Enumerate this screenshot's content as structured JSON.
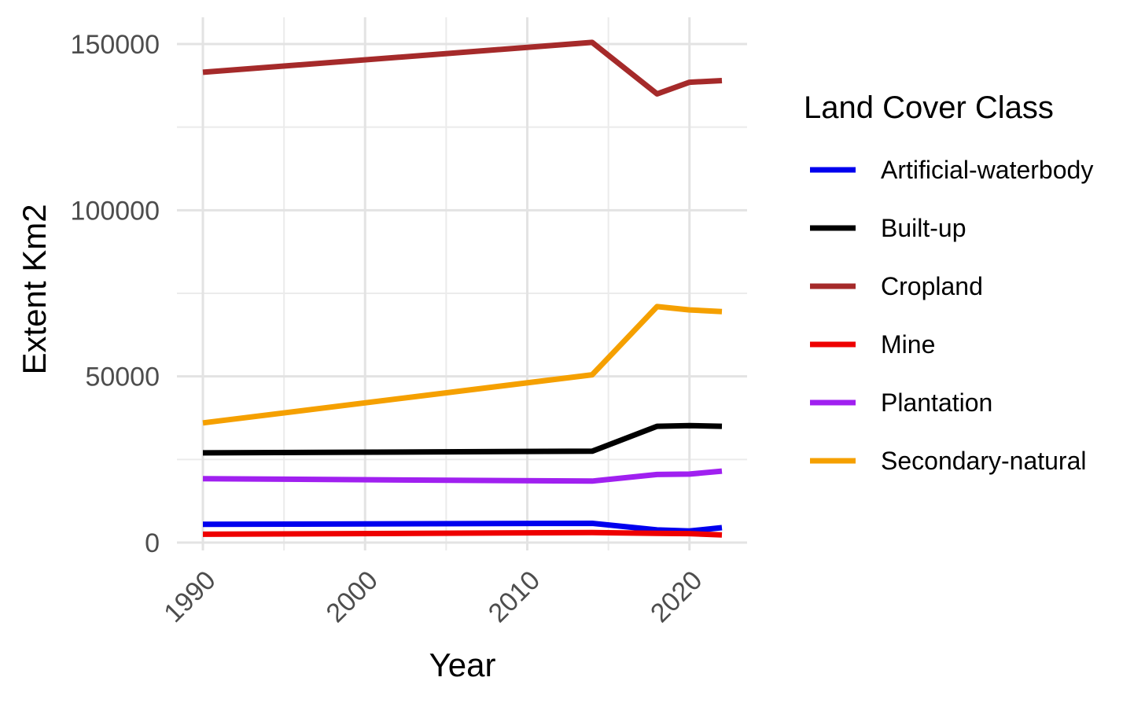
{
  "chart_data": {
    "type": "line",
    "title": "",
    "xlabel": "Year",
    "ylabel": "Extent Km2",
    "xlim": [
      1990,
      2022
    ],
    "ylim": [
      0,
      150000
    ],
    "x_ticks": [
      "1990",
      "2000",
      "2010",
      "2020"
    ],
    "y_ticks": [
      "0",
      "50000",
      "100000",
      "150000"
    ],
    "grid": true,
    "legend_title": "Land Cover Class",
    "legend_position": "right",
    "x": [
      1990,
      2014,
      2018,
      2020,
      2022
    ],
    "series": [
      {
        "name": "Artificial-waterbody",
        "color": "#0000ee",
        "values": [
          5500,
          5800,
          3800,
          3500,
          4500
        ]
      },
      {
        "name": "Built-up",
        "color": "#000000",
        "values": [
          27000,
          27500,
          35000,
          35200,
          35000
        ]
      },
      {
        "name": "Cropland",
        "color": "#a52a2a",
        "values": [
          141500,
          150500,
          135000,
          138500,
          139000
        ]
      },
      {
        "name": "Mine",
        "color": "#ee0000",
        "values": [
          2500,
          3000,
          2800,
          2700,
          2300
        ]
      },
      {
        "name": "Plantation",
        "color": "#a020f0",
        "values": [
          19200,
          18500,
          20500,
          20600,
          21500
        ]
      },
      {
        "name": "Secondary-natural",
        "color": "#f5a000",
        "values": [
          36000,
          50500,
          71000,
          70000,
          69500
        ]
      }
    ]
  }
}
